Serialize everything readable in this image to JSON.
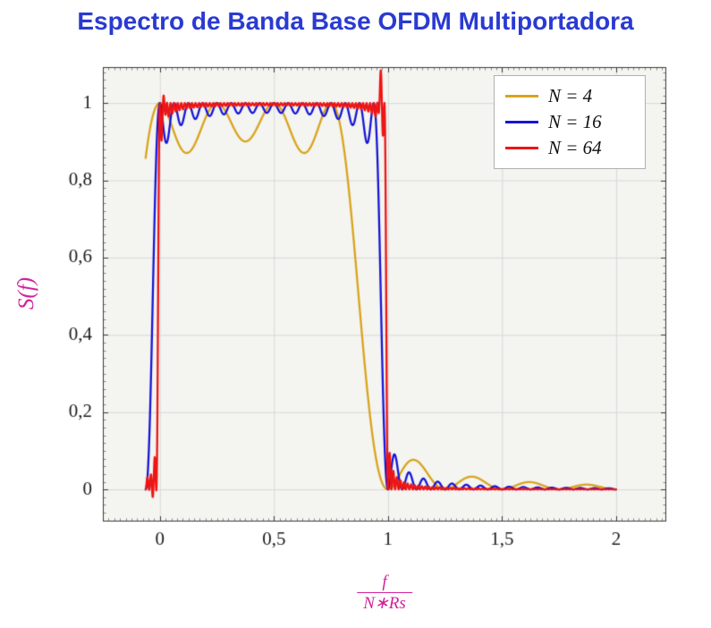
{
  "chart_data": {
    "type": "line",
    "title": "Espectro de Banda Base OFDM Multiportadora",
    "ylabel": "S(f)",
    "xlabel_numerator": "f",
    "xlabel_denominator": "N∗Rs",
    "xlim": [
      -0.25,
      2.22
    ],
    "ylim": [
      -0.083,
      1.093
    ],
    "x_ticks": [
      0,
      0.5,
      1,
      1.5,
      2
    ],
    "x_tick_labels": [
      "0",
      "0,5",
      "1",
      "1,5",
      "2"
    ],
    "y_ticks": [
      0,
      0.2,
      0.4,
      0.6,
      0.8,
      1
    ],
    "y_tick_labels": [
      "0",
      "0,2",
      "0,4",
      "0,6",
      "0,8",
      "1"
    ],
    "x_minor_step": 0.025,
    "y_minor_step": 0.02,
    "grid": true,
    "legend_position": "top-right",
    "model": "S(x) = sum_{k=0..N-1} sinc^2(N*x - k), sinc(t)=sin(pi t)/(pi t); x = f/(N*Rs)",
    "sample": {
      "x_start": -0.0625,
      "x_end": 2.0,
      "step": 0.001
    },
    "series": [
      {
        "name": "N = 4",
        "N": 4,
        "color": "#d9a41d",
        "spikes": []
      },
      {
        "name": "N = 16",
        "N": 16,
        "color": "#1515d6",
        "spikes": []
      },
      {
        "name": "N = 64",
        "N": 64,
        "color": "#ed1515",
        "spikes": [
          {
            "x": 0.968,
            "h": 0.085,
            "w": 0.007
          },
          {
            "x": 0.02,
            "h": 0.03,
            "w": 0.006
          },
          {
            "x": -0.03,
            "h": -0.02,
            "w": 0.01
          }
        ]
      }
    ],
    "style": {
      "title_color": "#2a3ad2",
      "axis_label_color": "#d0219b",
      "plot_background": "#f4f4f0",
      "grid_color": "#d8d8d8",
      "frame_color": "#3a3a3a",
      "tick_color": "#3a3a3a",
      "minor_tick_color": "#8a8a8a",
      "tick_label_color": "#1a1a1a",
      "legend_border_color": "#b0b0b0"
    }
  }
}
